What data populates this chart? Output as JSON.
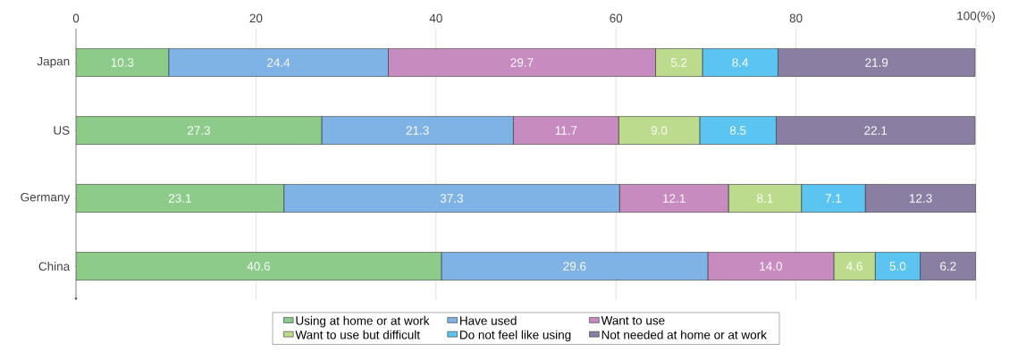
{
  "chart_data": {
    "type": "bar",
    "orientation": "horizontal",
    "stacked": true,
    "grid": "x",
    "legend": "bottom",
    "categories": [
      "Japan",
      "US",
      "Germany",
      "China"
    ],
    "xlim": [
      0,
      100
    ],
    "xticks": [
      0,
      20,
      40,
      60,
      80,
      {
        "value": 100,
        "label": "100(%)"
      }
    ],
    "series": [
      {
        "name": "Using at home or at work",
        "color": "#8ccb8a",
        "values": [
          10.3,
          27.3,
          23.1,
          40.6
        ],
        "value_labels": [
          "10.3",
          "27.3",
          "23.1",
          "40.6"
        ]
      },
      {
        "name": "Have used",
        "color": "#7fb2e5",
        "values": [
          24.4,
          21.3,
          37.3,
          29.6
        ],
        "value_labels": [
          "24.4",
          "21.3",
          "37.3",
          "29.6"
        ]
      },
      {
        "name": "Want to use",
        "color": "#c78bbf",
        "values": [
          29.7,
          11.7,
          12.1,
          14.0
        ],
        "value_labels": [
          "29.7",
          "11.7",
          "12.1",
          "14.0"
        ]
      },
      {
        "name": "Want to use but difficult",
        "color": "#bcdb8c",
        "values": [
          5.2,
          9.0,
          8.1,
          4.6
        ],
        "value_labels": [
          "5.2",
          "9.0",
          "8.1",
          "4.6"
        ]
      },
      {
        "name": "Do not feel like using",
        "color": "#5bc4f0",
        "values": [
          8.4,
          8.5,
          7.1,
          5.0
        ],
        "value_labels": [
          "8.4",
          "8.5",
          "7.1",
          "5.0"
        ]
      },
      {
        "name": "Not needed at home or at work",
        "color": "#8a7fa2",
        "values": [
          21.9,
          22.1,
          12.3,
          6.2
        ],
        "value_labels": [
          "21.9",
          "22.1",
          "12.3",
          "6.2"
        ]
      }
    ]
  }
}
